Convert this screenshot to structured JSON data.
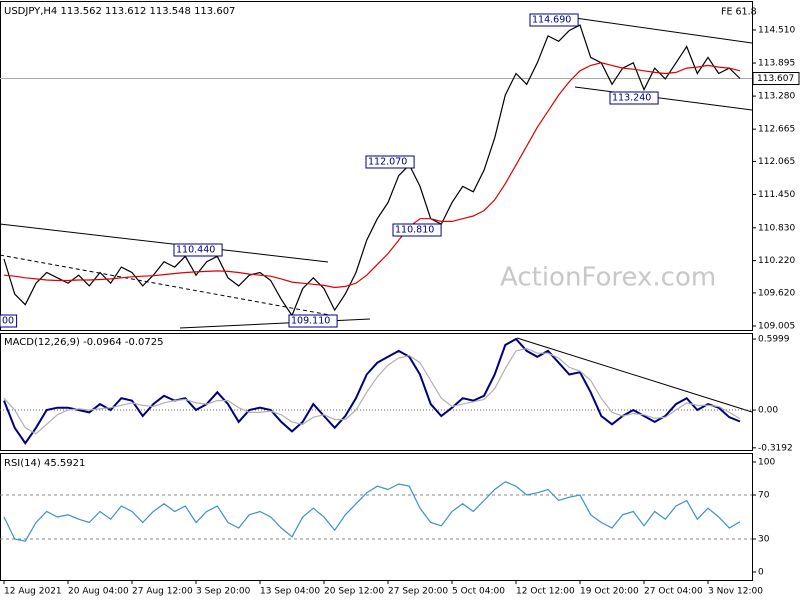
{
  "chart_data": [
    {
      "type": "line",
      "title": "USDJPY,H4 113.562 113.612 113.548 113.607",
      "categories": [
        "12 Aug 2021",
        null,
        null,
        null,
        null,
        null,
        "20 Aug 04:00",
        null,
        null,
        null,
        null,
        null,
        "27 Aug 12:00",
        null,
        null,
        null,
        null,
        null,
        "3 Sep 20:00",
        null,
        null,
        null,
        null,
        null,
        "13 Sep 04:00",
        null,
        null,
        null,
        null,
        null,
        "20 Sep 12:00",
        null,
        null,
        null,
        null,
        null,
        "27 Sep 20:00",
        null,
        null,
        null,
        null,
        null,
        "5 Oct 04:00",
        null,
        null,
        null,
        null,
        null,
        "12 Oct 12:00",
        null,
        null,
        null,
        null,
        null,
        "19 Oct 20:00",
        null,
        null,
        null,
        null,
        null,
        "27 Oct 04:00",
        null,
        null,
        null,
        null,
        null,
        "3 Nov 12:00",
        null,
        null,
        null
      ],
      "series": [
        {
          "color": "#000000",
          "values": [
            110.25,
            109.6,
            109.4,
            109.8,
            110.0,
            109.9,
            109.8,
            109.95,
            109.75,
            110.0,
            109.8,
            110.1,
            110.0,
            109.75,
            109.95,
            110.2,
            110.1,
            110.3,
            109.95,
            110.2,
            110.3,
            109.9,
            109.75,
            109.95,
            110.0,
            109.85,
            109.5,
            109.2,
            109.7,
            109.9,
            109.7,
            109.3,
            109.6,
            110.0,
            110.6,
            111.0,
            111.3,
            111.8,
            112.0,
            111.6,
            111.0,
            110.9,
            111.3,
            111.6,
            111.5,
            111.9,
            112.5,
            113.3,
            113.7,
            113.5,
            113.9,
            114.4,
            114.3,
            114.5,
            114.6,
            114.0,
            113.9,
            113.5,
            113.8,
            113.9,
            113.4,
            113.8,
            113.6,
            113.9,
            114.2,
            113.7,
            114.0,
            113.7,
            113.8,
            113.607
          ]
        },
        {
          "color": "#e00000",
          "values": [
            109.95,
            109.93,
            109.9,
            109.88,
            109.86,
            109.85,
            109.85,
            109.86,
            109.86,
            109.87,
            109.88,
            109.9,
            109.92,
            109.93,
            109.94,
            109.96,
            109.98,
            110.0,
            110.01,
            110.02,
            110.03,
            110.02,
            110.0,
            109.97,
            109.95,
            109.93,
            109.88,
            109.82,
            109.8,
            109.78,
            109.76,
            109.72,
            109.74,
            109.8,
            109.95,
            110.15,
            110.35,
            110.6,
            110.85,
            111.0,
            111.0,
            110.95,
            110.95,
            111.0,
            111.05,
            111.15,
            111.35,
            111.65,
            112.0,
            112.35,
            112.7,
            113.0,
            113.3,
            113.55,
            113.75,
            113.85,
            113.9,
            113.85,
            113.8,
            113.78,
            113.75,
            113.72,
            113.7,
            113.72,
            113.8,
            113.82,
            113.85,
            113.82,
            113.8,
            113.75
          ]
        }
      ],
      "ylim": [
        108.93,
        115.03
      ],
      "yticks": [
        {
          "value": 114.51,
          "label": "114.510"
        },
        113.895,
        {
          "value": 113.28,
          "label": "113.280"
        },
        112.665,
        112.065,
        {
          "value": 111.45,
          "label": "111.450"
        },
        {
          "value": 110.83,
          "label": "110.830"
        },
        {
          "value": 110.22,
          "label": "110.220"
        },
        {
          "value": 109.62,
          "label": "109.620"
        },
        109.005
      ],
      "last_price": 113.607,
      "annotations": [
        "114.690",
        "113.240",
        "112.070",
        "110.810",
        "110.440",
        "109.110",
        "00",
        "FE 61.8"
      ],
      "watermark": "ActionForex.com"
    },
    {
      "type": "line",
      "title": "MACD(12,26,9) -0.0964 -0.0725",
      "series": [
        {
          "color": "#000080",
          "values": [
            0.08,
            -0.15,
            -0.28,
            -0.15,
            0.0,
            0.02,
            0.02,
            0.0,
            -0.02,
            0.05,
            0.0,
            0.1,
            0.08,
            -0.05,
            0.05,
            0.12,
            0.08,
            0.1,
            0.0,
            0.05,
            0.15,
            0.05,
            -0.1,
            0.0,
            0.02,
            0.0,
            -0.1,
            -0.18,
            -0.1,
            0.05,
            -0.05,
            -0.15,
            -0.05,
            0.1,
            0.3,
            0.4,
            0.45,
            0.5,
            0.45,
            0.3,
            0.05,
            -0.05,
            0.02,
            0.1,
            0.08,
            0.12,
            0.3,
            0.55,
            0.6,
            0.5,
            0.45,
            0.5,
            0.4,
            0.3,
            0.32,
            0.15,
            -0.05,
            -0.12,
            -0.05,
            0.0,
            -0.05,
            -0.1,
            -0.05,
            0.05,
            0.1,
            0.0,
            0.05,
            0.02,
            -0.06,
            -0.0964
          ]
        },
        {
          "color": "#b0b0b0",
          "values": [
            0.1,
            0.0,
            -0.15,
            -0.2,
            -0.12,
            -0.04,
            0.0,
            0.01,
            0.0,
            0.01,
            0.02,
            0.04,
            0.06,
            0.04,
            0.03,
            0.06,
            0.08,
            0.09,
            0.06,
            0.05,
            0.08,
            0.08,
            0.02,
            -0.02,
            -0.02,
            -0.01,
            -0.04,
            -0.1,
            -0.12,
            -0.06,
            -0.04,
            -0.08,
            -0.08,
            0.0,
            0.15,
            0.28,
            0.38,
            0.44,
            0.46,
            0.4,
            0.25,
            0.1,
            0.03,
            0.05,
            0.07,
            0.09,
            0.18,
            0.35,
            0.5,
            0.52,
            0.48,
            0.48,
            0.44,
            0.36,
            0.33,
            0.25,
            0.1,
            -0.02,
            -0.05,
            -0.03,
            -0.04,
            -0.07,
            -0.06,
            0.0,
            0.06,
            0.04,
            0.04,
            0.03,
            -0.02,
            -0.0725
          ]
        }
      ],
      "ylim": [
        -0.346,
        0.651
      ],
      "yticks": [
        0.5999,
        {
          "value": 0,
          "label": "0.00"
        },
        -0.3192
      ],
      "zero_line": true
    },
    {
      "type": "line",
      "title": "RSI(14) 45.5921",
      "series": [
        {
          "color": "#3c8fd0",
          "values": [
            50,
            30,
            28,
            45,
            55,
            50,
            52,
            48,
            45,
            55,
            48,
            60,
            55,
            45,
            55,
            62,
            55,
            60,
            45,
            55,
            60,
            45,
            40,
            52,
            55,
            50,
            40,
            32,
            50,
            58,
            50,
            38,
            52,
            62,
            72,
            78,
            75,
            80,
            78,
            58,
            45,
            42,
            55,
            62,
            55,
            65,
            75,
            82,
            78,
            70,
            72,
            75,
            65,
            68,
            70,
            52,
            45,
            40,
            52,
            55,
            42,
            55,
            48,
            60,
            65,
            48,
            58,
            50,
            40,
            45.5921
          ]
        }
      ],
      "ylim": [
        0,
        100
      ],
      "yticks": [
        100,
        70,
        30,
        0
      ],
      "grid": true
    }
  ]
}
